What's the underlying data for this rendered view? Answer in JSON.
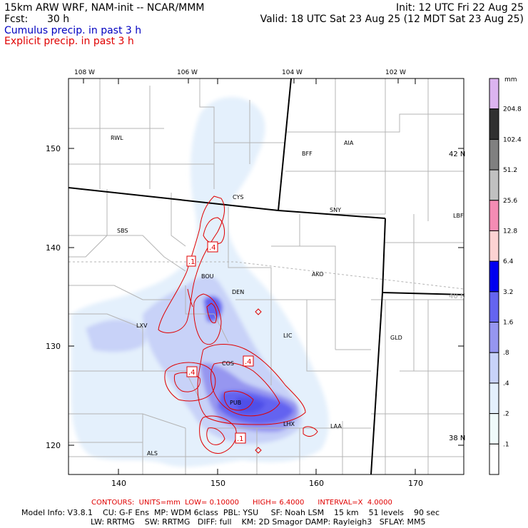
{
  "header": {
    "title": "15km ARW WRF, NAM-init -- NCAR/MMM",
    "init": "Init: 12 UTC Fri 22 Aug 25",
    "fcst_label": "Fcst:",
    "fcst_value": "30 h",
    "valid": "Valid: 18 UTC Sat 23 Aug 25 (12 MDT Sat 23 Aug 25)",
    "legend_cumulus": "Cumulus precip. in past 3 h",
    "legend_explicit": "Explicit precip. in past 3 h"
  },
  "colors": {
    "cumulus_text": "#0000c0",
    "explicit_text": "#e00000",
    "contour": "#e00000",
    "border": "#000000",
    "county": "#b0b0b0",
    "axis_right": "#aaaaaa"
  },
  "axes": {
    "top_lon": [
      "108 W",
      "106 W",
      "104 W",
      "102 W"
    ],
    "right_lat": [
      "42 N",
      "40 N",
      "38 N"
    ],
    "left_y": [
      "150",
      "140",
      "130",
      "120"
    ],
    "bottom_x": [
      "140",
      "150",
      "160",
      "170"
    ]
  },
  "cities": [
    "RWL",
    "BFF",
    "AIA",
    "CYS",
    "SNY",
    "LBF",
    "SBS",
    "BOU",
    "AKO",
    "DEN",
    "LXV",
    "LIC",
    "GLD",
    "COS",
    "PUB",
    "LHX",
    "LAA",
    "ALS"
  ],
  "contour_labels": [
    ".4",
    ".1",
    ".4",
    ".4",
    ".1"
  ],
  "colorbar": {
    "unit": "mm",
    "levels": [
      "204.8",
      "102.4",
      "51.2",
      "25.6",
      "12.8",
      "6.4",
      "3.2",
      "1.6",
      ".8",
      ".4",
      ".2",
      ".1"
    ],
    "colors": [
      "#dcb4f0",
      "#303030",
      "#808080",
      "#c0c0c0",
      "#f48cb4",
      "#fcd2d2",
      "#0000f0",
      "#6464f0",
      "#9696f0",
      "#c8d2f8",
      "#e4f0fc",
      "#f0fafa",
      "#ffffff"
    ]
  },
  "footer": {
    "contours": "CONTOURS:  UNITS=mm  LOW= 0.10000      HIGH= 6.4000      INTERVAL=X  4.0000",
    "line1": "Model Info: V3.8.1    CU: G-F Ens  MP: WDM 6class  PBL: YSU     SF: Noah LSM    15 km    51 levels    90 sec",
    "line2": "LW: RRTMG    SW: RRTMG   DIFF: full    KM: 2D Smagor DAMP: Rayleigh3   SFLAY: MM5"
  }
}
